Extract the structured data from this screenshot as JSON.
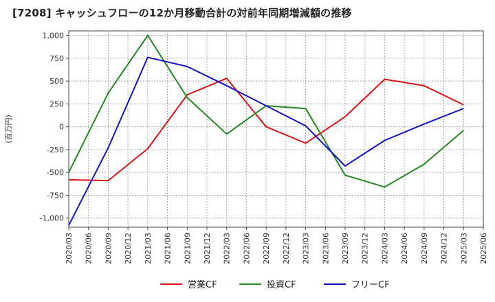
{
  "chart_data": {
    "type": "line",
    "title": "[7208]  キャッシュフローの12か月移動合計の対前年同期増減額の推移",
    "xlabel": "",
    "ylabel": "(百万円)",
    "ylim": [
      -1100,
      1050
    ],
    "yticks": [
      1000,
      750,
      500,
      250,
      0,
      -250,
      -500,
      -750,
      -1000
    ],
    "ytick_labels": [
      "1,000",
      "750",
      "500",
      "250",
      "0",
      "-250",
      "-500",
      "-750",
      "-1,000"
    ],
    "categories": [
      "2020/03",
      "2020/06",
      "2020/09",
      "2020/12",
      "2021/03",
      "2021/06",
      "2021/09",
      "2021/12",
      "2022/03",
      "2022/06",
      "2022/09",
      "2022/12",
      "2023/03",
      "2023/06",
      "2023/09",
      "2023/12",
      "2024/03",
      "2024/06",
      "2024/09",
      "2024/12",
      "2025/03",
      "2025/06"
    ],
    "grid": true,
    "legend_position": "bottom",
    "series": [
      {
        "name": "営業CF",
        "color": "#dd1111",
        "points": [
          {
            "x": "2020/03",
            "y": -580
          },
          {
            "x": "2020/09",
            "y": -590
          },
          {
            "x": "2021/03",
            "y": -240
          },
          {
            "x": "2021/09",
            "y": 350
          },
          {
            "x": "2022/03",
            "y": 530
          },
          {
            "x": "2022/09",
            "y": 0
          },
          {
            "x": "2023/03",
            "y": -180
          },
          {
            "x": "2023/09",
            "y": 110
          },
          {
            "x": "2024/03",
            "y": 520
          },
          {
            "x": "2024/09",
            "y": 450
          },
          {
            "x": "2025/03",
            "y": 240
          }
        ]
      },
      {
        "name": "投資CF",
        "color": "#228822",
        "points": [
          {
            "x": "2020/03",
            "y": -500
          },
          {
            "x": "2020/09",
            "y": 370
          },
          {
            "x": "2021/03",
            "y": 1000
          },
          {
            "x": "2021/09",
            "y": 320
          },
          {
            "x": "2022/03",
            "y": -80
          },
          {
            "x": "2022/09",
            "y": 230
          },
          {
            "x": "2023/03",
            "y": 200
          },
          {
            "x": "2023/09",
            "y": -530
          },
          {
            "x": "2024/03",
            "y": -660
          },
          {
            "x": "2024/09",
            "y": -410
          },
          {
            "x": "2025/03",
            "y": -40
          }
        ]
      },
      {
        "name": "フリーCF",
        "color": "#1111cc",
        "points": [
          {
            "x": "2020/03",
            "y": -1080
          },
          {
            "x": "2020/09",
            "y": -230
          },
          {
            "x": "2021/03",
            "y": 760
          },
          {
            "x": "2021/09",
            "y": 660
          },
          {
            "x": "2022/03",
            "y": 450
          },
          {
            "x": "2022/09",
            "y": 230
          },
          {
            "x": "2023/03",
            "y": 10
          },
          {
            "x": "2023/09",
            "y": -430
          },
          {
            "x": "2024/03",
            "y": -150
          },
          {
            "x": "2024/09",
            "y": 30
          },
          {
            "x": "2025/03",
            "y": 200
          }
        ]
      }
    ]
  }
}
